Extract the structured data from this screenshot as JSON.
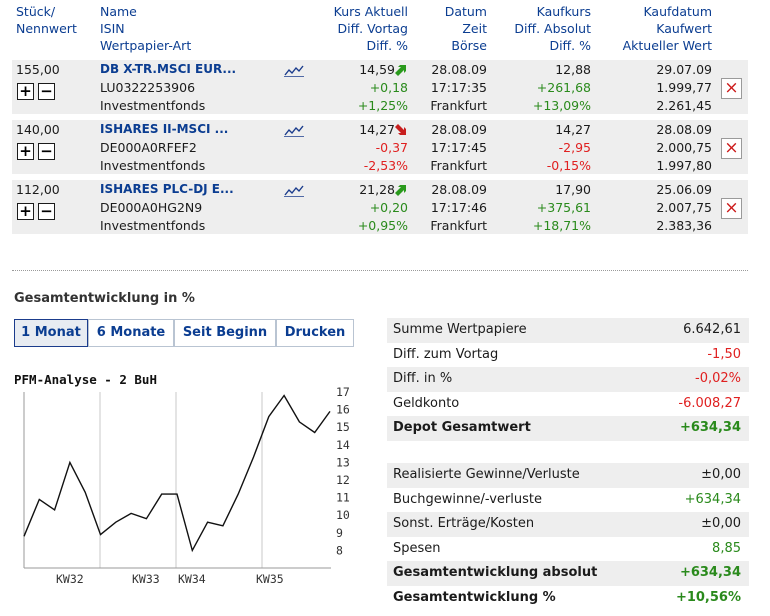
{
  "header": {
    "col1": [
      "Stück/",
      "Nennwert"
    ],
    "col2": [
      "Name",
      "ISIN",
      "Wertpapier-Art"
    ],
    "col3": [
      "Kurs Aktuell",
      "Diff. Vortag",
      "Diff. %"
    ],
    "col4": [
      "Datum",
      "Zeit",
      "Börse"
    ],
    "col5": [
      "Kaufkurs",
      "Diff. Absolut",
      "Diff. %"
    ],
    "col6": [
      "Kaufdatum",
      "Kaufwert",
      "Aktueller Wert"
    ]
  },
  "positions": [
    {
      "qty": "155,00",
      "name": "DB X-TR.MSCI EUR...",
      "isin": "LU0322253906",
      "type": "Investmentfonds",
      "price": "14,59",
      "trend": "up",
      "diff_prev": "+0,18",
      "diff_prev_pct": "+1,25%",
      "date": "28.08.09",
      "time": "17:17:35",
      "exchange": "Frankfurt",
      "buy_price": "12,88",
      "diff_abs": "+261,68",
      "diff_pct": "+13,09%",
      "buy_date": "29.07.09",
      "buy_value": "1.999,77",
      "current_value": "2.261,45",
      "sign": "pos"
    },
    {
      "qty": "140,00",
      "name": "ISHARES II-MSCI ...",
      "isin": "DE000A0RFEF2",
      "type": "Investmentfonds",
      "price": "14,27",
      "trend": "down",
      "diff_prev": "-0,37",
      "diff_prev_pct": "-2,53%",
      "date": "28.08.09",
      "time": "17:17:45",
      "exchange": "Frankfurt",
      "buy_price": "14,27",
      "diff_abs": "-2,95",
      "diff_pct": "-0,15%",
      "buy_date": "28.08.09",
      "buy_value": "2.000,75",
      "current_value": "1.997,80",
      "sign": "neg"
    },
    {
      "qty": "112,00",
      "name": "ISHARES PLC-DJ E...",
      "isin": "DE000A0HG2N9",
      "type": "Investmentfonds",
      "price": "21,28",
      "trend": "up",
      "diff_prev": "+0,20",
      "diff_prev_pct": "+0,95%",
      "date": "28.08.09",
      "time": "17:17:46",
      "exchange": "Frankfurt",
      "buy_price": "17,90",
      "diff_abs": "+375,61",
      "diff_pct": "+18,71%",
      "buy_date": "25.06.09",
      "buy_value": "2.007,75",
      "current_value": "2.383,36",
      "sign": "pos"
    }
  ],
  "buttons": {
    "plus": "+",
    "minus": "−",
    "delete": "×"
  },
  "performance": {
    "section_title": "Gesamtentwicklung in %",
    "tabs": [
      "1 Monat",
      "6 Monate",
      "Seit Beginn",
      "Drucken"
    ],
    "active_tab": 0
  },
  "chart_data": {
    "type": "line",
    "title": "PFM-Analyse - 2 BuH",
    "ylim": [
      7,
      17
    ],
    "y_ticks": [
      "17",
      "16",
      "15",
      "14",
      "13",
      "12",
      "11",
      "10",
      "9",
      "8"
    ],
    "x_tick_labels": [
      "KW32",
      "KW33",
      "KW34",
      "KW35"
    ],
    "grid": "vertical",
    "series": [
      {
        "values": [
          8.8,
          10.9,
          10.3,
          13.0,
          11.3,
          8.9,
          9.6,
          10.1,
          9.8,
          11.2,
          11.2,
          8.0,
          9.6,
          9.4,
          11.2,
          13.3,
          15.6,
          16.8,
          15.3,
          14.7,
          15.9
        ]
      }
    ]
  },
  "summary": {
    "rows": [
      {
        "label": "Summe Wertpapiere",
        "value": "6.642,61",
        "cls": "",
        "bold": false,
        "shade": true
      },
      {
        "label": "Diff. zum Vortag",
        "value": "-1,50",
        "cls": "neg",
        "bold": false,
        "shade": false
      },
      {
        "label": "Diff. in %",
        "value": "-0,02%",
        "cls": "neg",
        "bold": false,
        "shade": true
      },
      {
        "label": "Geldkonto",
        "value": "-6.008,27",
        "cls": "neg",
        "bold": false,
        "shade": false
      },
      {
        "label": "Depot Gesamtwert",
        "value": "+634,34",
        "cls": "pos",
        "bold": true,
        "shade": true
      }
    ],
    "rows2": [
      {
        "label": "Realisierte Gewinne/Verluste",
        "value": "±0,00",
        "cls": "",
        "bold": false,
        "shade": true
      },
      {
        "label": "Buchgewinne/-verluste",
        "value": "+634,34",
        "cls": "pos",
        "bold": false,
        "shade": false
      },
      {
        "label": "Sonst. Erträge/Kosten",
        "value": "±0,00",
        "cls": "",
        "bold": false,
        "shade": true
      },
      {
        "label": "Spesen",
        "value": "8,85",
        "cls": "pos",
        "bold": false,
        "shade": false
      },
      {
        "label": "Gesamtentwicklung absolut",
        "value": "+634,34",
        "cls": "pos",
        "bold": true,
        "shade": true
      },
      {
        "label": "Gesamtentwicklung %",
        "value": "+10,56%",
        "cls": "pos",
        "bold": true,
        "shade": false
      }
    ]
  }
}
